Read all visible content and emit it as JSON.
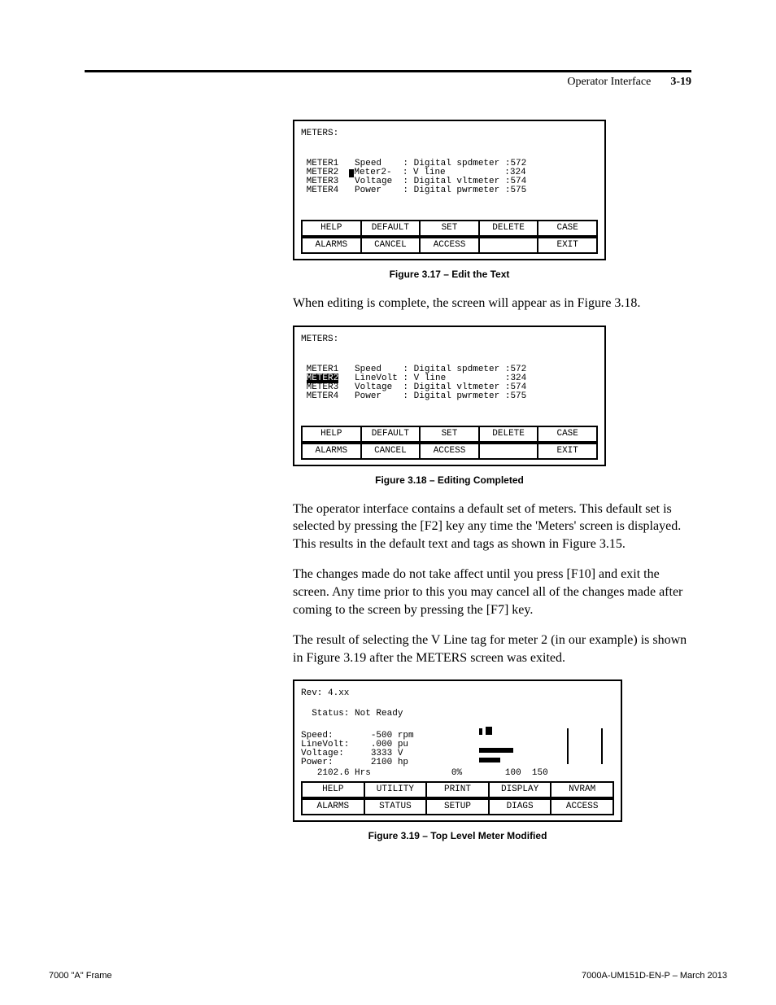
{
  "header": {
    "section": "Operator Interface",
    "page_number": "3-19"
  },
  "figure17": {
    "title": "METERS:",
    "rows": [
      {
        "label": "METER1",
        "name": "Speed",
        "desc": "Digital spdmeter",
        "code": ":572"
      },
      {
        "label": "METER2",
        "name": "Meter2-",
        "desc": "V line",
        "code": ":324",
        "cursor": true
      },
      {
        "label": "METER3",
        "name": "Voltage",
        "desc": "Digital vltmeter",
        "code": ":574"
      },
      {
        "label": "METER4",
        "name": "Power",
        "desc": "Digital pwrmeter",
        "code": ":575"
      }
    ],
    "buttons_row1": [
      "HELP",
      "DEFAULT",
      "SET",
      "DELETE",
      "CASE"
    ],
    "buttons_row2": [
      "ALARMS",
      "CANCEL",
      "ACCESS",
      "",
      "EXIT"
    ],
    "caption": "Figure 3.17  – Edit the Text"
  },
  "para1": "When editing is complete, the screen will appear as in Figure 3.18.",
  "figure18": {
    "title": "METERS:",
    "rows": [
      {
        "label": "METER1",
        "name": "Speed",
        "desc": "Digital spdmeter",
        "code": ":572"
      },
      {
        "label": "METER2",
        "name": "LineVolt",
        "desc": "V line",
        "code": ":324",
        "hilite": true
      },
      {
        "label": "METER3",
        "name": "Voltage",
        "desc": "Digital vltmeter",
        "code": ":574"
      },
      {
        "label": "METER4",
        "name": "Power",
        "desc": "Digital pwrmeter",
        "code": ":575"
      }
    ],
    "buttons_row1": [
      "HELP",
      "DEFAULT",
      "SET",
      "DELETE",
      "CASE"
    ],
    "buttons_row2": [
      "ALARMS",
      "CANCEL",
      "ACCESS",
      "",
      "EXIT"
    ],
    "caption": "Figure 3.18 – Editing Completed"
  },
  "para2": "The operator interface contains a default set of meters.  This default set is selected by pressing the [F2] key any time the 'Meters' screen is displayed.  This results in the default text and tags as shown in Figure 3.15.",
  "para3": "The changes made do not take affect until you press [F10] and exit the screen.  Any time prior to this you may cancel all of the changes made after coming to the screen by pressing the [F7] key.",
  "para4": "The result of selecting the V Line tag for meter 2 (in our example) is shown in Figure 3.19 after the METERS screen was exited.",
  "figure19": {
    "rev": "Rev: 4.xx",
    "status_label": "Status:",
    "status_value": "Not Ready",
    "readings": [
      {
        "label": "Speed:",
        "value": "-500",
        "unit": "rpm"
      },
      {
        "label": "LineVolt:",
        "value": ".000",
        "unit": "pu"
      },
      {
        "label": "Voltage:",
        "value": "3333",
        "unit": "V"
      },
      {
        "label": "Power:",
        "value": "2100",
        "unit": "hp"
      }
    ],
    "hours": "2102.6 Hrs",
    "axis": {
      "left": "0%",
      "mid": "100",
      "right": "150"
    },
    "buttons_row1": [
      "HELP",
      "UTILITY",
      "PRINT",
      "DISPLAY",
      "NVRAM"
    ],
    "buttons_row2": [
      "ALARMS",
      "STATUS",
      "SETUP",
      "DIAGS",
      "ACCESS"
    ],
    "caption": "Figure 3.19 – Top Level Meter Modified"
  },
  "footer": {
    "left": "7000 \"A\" Frame",
    "right": "7000A-UM151D-EN-P – March 2013"
  }
}
